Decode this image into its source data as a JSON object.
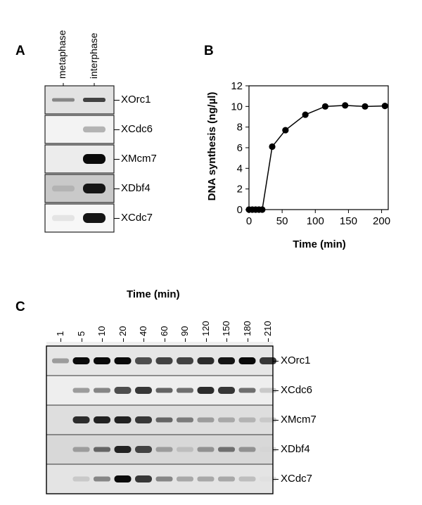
{
  "panel_a": {
    "letter": "A",
    "lanes": [
      "metaphase",
      "interphase"
    ],
    "rows": [
      {
        "label": "XOrc1",
        "bg": "#e2e2e2",
        "bands": [
          0.45,
          0.75
        ]
      },
      {
        "label": "XCdc6",
        "bg": "#f3f3f3",
        "bands": [
          0.0,
          0.25
        ]
      },
      {
        "label": "XMcm7",
        "bg": "#ececec",
        "bands": [
          0.0,
          1.0
        ]
      },
      {
        "label": "XDbf4",
        "bg": "#c9c9c9",
        "bands": [
          0.25,
          0.95
        ]
      },
      {
        "label": "XCdc7",
        "bg": "#f7f7f7",
        "bands": [
          0.03,
          0.95
        ]
      }
    ]
  },
  "panel_b": {
    "letter": "B",
    "chart_data": {
      "type": "line",
      "xlabel": "Time  (min)",
      "ylabel": "DNA synthesis  (ng/µl)",
      "xlim": [
        0,
        210
      ],
      "ylim": [
        0,
        12
      ],
      "xticks": [
        0,
        50,
        100,
        150,
        200
      ],
      "yticks": [
        0,
        2,
        4,
        6,
        8,
        10,
        12
      ],
      "x": [
        0,
        5,
        10,
        15,
        20,
        35,
        55,
        85,
        115,
        145,
        175,
        205
      ],
      "y": [
        0,
        0,
        0,
        0,
        0,
        6.1,
        7.7,
        9.2,
        10.0,
        10.1,
        10.0,
        10.05
      ]
    }
  },
  "panel_c": {
    "letter": "C",
    "time_title": "Time  (min)",
    "times": [
      "1",
      "5",
      "10",
      "20",
      "40",
      "60",
      "90",
      "120",
      "150",
      "180",
      "210"
    ],
    "rows": [
      {
        "label": "XOrc1",
        "bg": "#e6e6e6",
        "bands": [
          0.35,
          1.0,
          1.0,
          1.0,
          0.7,
          0.75,
          0.75,
          0.85,
          0.95,
          1.0,
          0.8
        ]
      },
      {
        "label": "XCdc6",
        "bg": "#eeeeee",
        "bands": [
          0.0,
          0.35,
          0.45,
          0.7,
          0.8,
          0.6,
          0.55,
          0.85,
          0.8,
          0.55,
          0.15
        ]
      },
      {
        "label": "XMcm7",
        "bg": "#dedede",
        "bands": [
          0.0,
          0.85,
          0.9,
          0.9,
          0.8,
          0.6,
          0.5,
          0.35,
          0.3,
          0.25,
          0.15
        ]
      },
      {
        "label": "XDbf4",
        "bg": "#d8d8d8",
        "bands": [
          0.0,
          0.35,
          0.6,
          0.9,
          0.75,
          0.35,
          0.2,
          0.4,
          0.55,
          0.4,
          0.1
        ]
      },
      {
        "label": "XCdc7",
        "bg": "#e4e4e4",
        "bands": [
          0.0,
          0.15,
          0.45,
          1.0,
          0.8,
          0.45,
          0.3,
          0.3,
          0.3,
          0.2,
          0.05
        ]
      }
    ]
  }
}
